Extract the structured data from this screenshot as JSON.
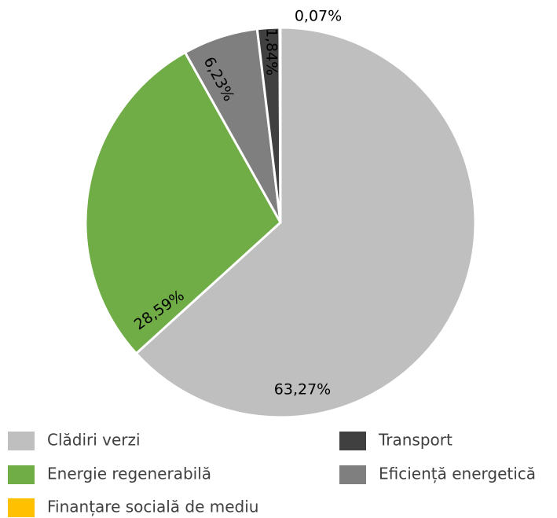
{
  "chart_data": {
    "type": "pie",
    "categories": [
      "Clădiri verzi",
      "Energie regenerabilă",
      "Eficiență energetică",
      "Transport",
      "Finanțare socială de mediu"
    ],
    "values": [
      63.27,
      28.59,
      6.23,
      1.84,
      0.07
    ],
    "value_labels": [
      "63,27%",
      "28,59%",
      "6,23%",
      "1,84%",
      "0,07%"
    ],
    "colors": [
      "#bfbfbf",
      "#70ad47",
      "#7f7f7f",
      "#404040",
      "#ffc000"
    ]
  }
}
